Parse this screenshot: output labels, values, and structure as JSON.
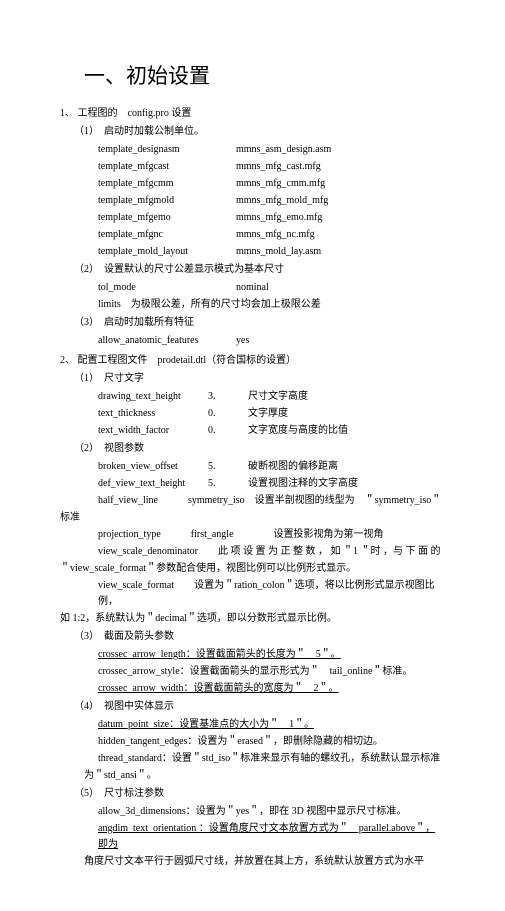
{
  "title": "一、初始设置",
  "s1": {
    "h": "1、 工程图的　config.pro 设置",
    "p1": {
      "h": "（1）　启动时加载公制单位。",
      "lines": [
        {
          "k": "template_designasm",
          "v": "mmns_asm_design.asm"
        },
        {
          "k": "template_mfgcast",
          "v": "mmns_mfg_cast.mfg"
        },
        {
          "k": "template_mfgcmm",
          "v": "mmns_mfg_cmm.mfg"
        },
        {
          "k": "template_mfgmold",
          "v": "mmns_mfg_mold_mfg"
        },
        {
          "k": "template_mfgemo",
          "v": "mmns_mfg_emo.mfg"
        },
        {
          "k": "template_mfgnc",
          "v": "mmns_mfg_nc.mfg"
        },
        {
          "k": "template_mold_layout",
          "v": "mmns_mold_lay.asm"
        }
      ]
    },
    "p2": {
      "h": "（2）　设置默认的尺寸公差显示模式为基本尺寸",
      "l1k": "tol_mode",
      "l1v": "nominal",
      "l2": "limits　为极限公差，所有的尺寸均会加上极限公差"
    },
    "p3": {
      "h": "（3）　启动时加载所有特征",
      "l1k": "allow_anatomic_features",
      "l1v": "yes"
    }
  },
  "s2": {
    "h": "2、 配置工程图文件　prodetail.dtl（符合国标的设置）",
    "p1": {
      "h": "（1）　尺寸文字",
      "l1k": "drawing_text_height",
      "l1m": "3.",
      "l1v": "尺寸文字高度",
      "l2k": "text_thickness",
      "l2m": "0.",
      "l2v": "文字厚度",
      "l3k": "text_width_factor",
      "l3m": "0.",
      "l3v": "文字宽度与高度的比值"
    },
    "p2": {
      "h": "（2）　视图参数",
      "l1k": "broken_view_offset",
      "l1m": "5.",
      "l1v": "破断视图的偏移距离",
      "l2k": "def_view_text_height",
      "l2m": "5.",
      "l2v": "设置视图注释的文字高度",
      "l3": "half_view_line　　　symmetry_iso　设置半剖视图的线型为　＂symmetry_iso＂",
      "l3b": "标准",
      "l4": "projection_type　　　first_angle　　　　设置投影视角为第一视角",
      "l5": "view_scale_denominator　　此 项 设 置 为 正 整 数 ， 如 ＂1 ＂时 ，与 下 面 的",
      "l5b": "＂view_scale_format＂参数配合使用，视图比例可以比例形式显示。",
      "l6": "view_scale_format　　设置为＂ration_colon＂选项，将以比例形式显示视图比例，",
      "l6b": "如 1:2，系统默认为＂decimal＂选项，即以分数形式显示比例。"
    },
    "p3": {
      "h": "（3）　截面及箭头参数",
      "l1": "crossec_arrow_length：设置截面箭头的长度为＂　5＂。",
      "l2": "crossec_arrow_style：设置截面箭头的显示形式为＂　tail_online＂标准。",
      "l3": "crossec_arrow_width：设置截面箭头的宽度为＂　2＂。"
    },
    "p4": {
      "h": "（4）　视图中实体显示",
      "l1": "datum_point_size：设置基准点的大小为＂　1＂。",
      "l2": "hidden_tangent_edges：设置为＂erased＂，即删除隐藏的相切边。",
      "l3": "thread_standard：设置＂std_iso＂标准来显示有轴的螺纹孔，系统默认显示标准",
      "l3b": "为＂std_ansi＂。"
    },
    "p5": {
      "h": "（5）　尺寸标注参数",
      "l1": "allow_3d_dimensions：设置为＂yes＂，即在 3D 视图中显示尺寸标准。",
      "l2": "angdim_text_orientation ：设置角度尺寸文本放置方式为＂　parallel.above＂，即为",
      "l2b": "角度尺寸文本平行于圆弧尺寸线，并放置在其上方，系统默认放置方式为水平"
    }
  }
}
